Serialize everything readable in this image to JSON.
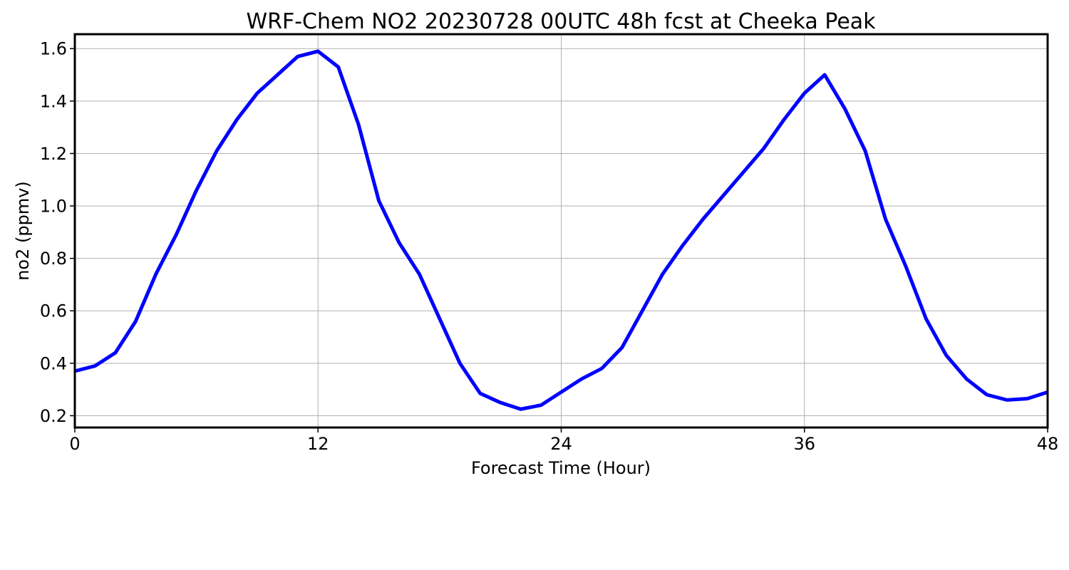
{
  "chart_data": {
    "type": "line",
    "title": "WRF-Chem NO2  20230728 00UTC 48h fcst at Cheeka Peak",
    "xlabel": "Forecast Time (Hour)",
    "ylabel": "no2  (ppmv)",
    "xlim": [
      0,
      48
    ],
    "ylim": [
      0.155,
      1.655
    ],
    "xticks": [
      0,
      12,
      24,
      36,
      48
    ],
    "yticks": [
      0.2,
      0.4,
      0.6,
      0.8,
      1.0,
      1.2,
      1.4,
      1.6
    ],
    "ytick_labels": [
      "0.2",
      "0.4",
      "0.6",
      "0.8",
      "1.0",
      "1.2",
      "1.4",
      "1.6"
    ],
    "grid": true,
    "series": [
      {
        "color": "#0000ff",
        "x": [
          0,
          1,
          2,
          3,
          4,
          5,
          6,
          7,
          8,
          9,
          10,
          11,
          12,
          13,
          14,
          15,
          16,
          17,
          18,
          19,
          20,
          21,
          22,
          23,
          24,
          25,
          26,
          27,
          28,
          29,
          30,
          31,
          32,
          33,
          34,
          35,
          36,
          37,
          38,
          39,
          40,
          41,
          42,
          43,
          44,
          45,
          46,
          47,
          48
        ],
        "y": [
          0.37,
          0.39,
          0.44,
          0.56,
          0.74,
          0.89,
          1.06,
          1.21,
          1.33,
          1.43,
          1.5,
          1.57,
          1.59,
          1.53,
          1.31,
          1.02,
          0.86,
          0.74,
          0.57,
          0.4,
          0.285,
          0.25,
          0.225,
          0.24,
          0.29,
          0.34,
          0.38,
          0.46,
          0.6,
          0.74,
          0.85,
          0.95,
          1.04,
          1.13,
          1.22,
          1.33,
          1.43,
          1.5,
          1.37,
          1.21,
          0.95,
          0.77,
          0.57,
          0.43,
          0.34,
          0.28,
          0.26,
          0.265,
          0.29
        ]
      }
    ]
  }
}
